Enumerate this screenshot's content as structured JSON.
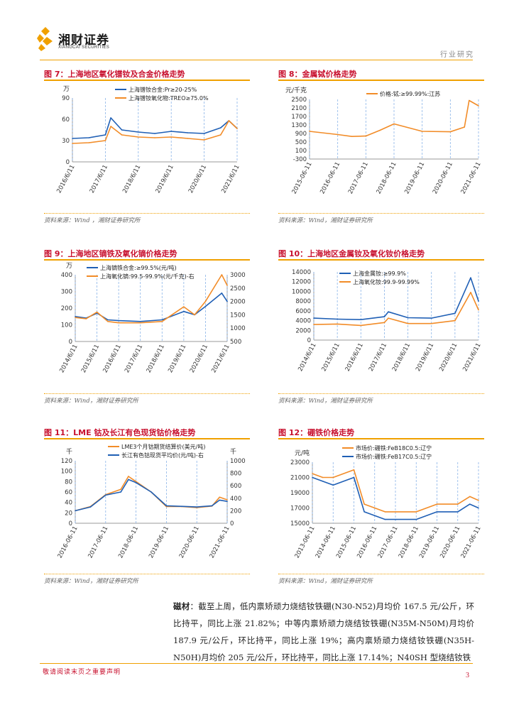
{
  "header": {
    "logo_name": "湘财证券",
    "logo_sub": "XIANGCAI SECURITIES",
    "section_label": "行业研究"
  },
  "colors": {
    "accent": "#f0a000",
    "title_red": "#c8102e",
    "series_blue": "#1f5fb5",
    "series_orange": "#f28c28"
  },
  "figures": [
    {
      "title": "图 7：上海地区氧化镨钕及合金价格走势",
      "source": "资料来源：Wind ，湘财证券研究所"
    },
    {
      "title": "图 8：金属铽价格走势",
      "source": "资料来源：Wind，湘财证券研究所"
    },
    {
      "title": "图 9：上海地区镝铁及氧化镝价格走势",
      "source": "资料来源：Wind，湘财证券研究所"
    },
    {
      "title": "图 10：上海地区金属钕及氧化钕价格走势",
      "source": "资料来源：Wind，湘财证券研究所"
    },
    {
      "title": "图 11：LME 钴及长江有色现货钴价格走势",
      "source": "资料来源：Wind，湘财证券研究所"
    },
    {
      "title": "图 12：硼铁价格走势",
      "source": "资料来源：Wind，湘财证券研究所"
    }
  ],
  "body": {
    "lead": "磁材",
    "text": "：截至上周，低内禀矫顽力烧结钕铁硼(N30-N52)月均价 167.5 元/公斤，环比持平，同比上涨 21.82%；中等内禀矫顽力烧结钕铁硼(N35M-N50M)月均价 187.9 元/公斤，环比持平，同比上涨 19%；高内禀矫顽力烧结钕铁硼(N35H-N50H)月均价 205 元/公斤，环比持平，同比上涨 17.14%；N40SH 型烧结钕铁"
  },
  "footer": {
    "disclaimer": "敬请阅读末页之重要声明",
    "page": "3"
  },
  "chart_data": [
    {
      "type": "line",
      "unit_left": "万",
      "x": [
        "2016/6/11",
        "2016/12/11",
        "2017/6/11",
        "2017/8/11",
        "2017/12/11",
        "2018/6/11",
        "2018/12/11",
        "2019/6/11",
        "2019/12/11",
        "2020/6/11",
        "2020/12/11",
        "2021/3/11",
        "2021/6/11"
      ],
      "xticks": [
        "2016/6/11",
        "2017/6/11",
        "2018/6/11",
        "2019/6/11",
        "2020/6/11",
        "2021/6/11"
      ],
      "yticks": [
        0,
        30,
        60,
        90
      ],
      "ylim": [
        0,
        90
      ],
      "series": [
        {
          "name": "上海镨钕合金:Pr≥20-25%",
          "color": "#1f5fb5",
          "values": [
            33,
            34,
            38,
            62,
            45,
            42,
            40,
            43,
            41,
            40,
            48,
            58,
            47
          ]
        },
        {
          "name": "上海镨钕氧化物:TREO≥75.0%",
          "color": "#f28c28",
          "values": [
            26,
            27,
            30,
            50,
            38,
            35,
            34,
            35,
            33,
            31,
            38,
            58,
            47
          ]
        }
      ]
    },
    {
      "type": "line",
      "unit_left": "元/千克",
      "x": [
        "2015-06-11",
        "2016-06-11",
        "2016-12-11",
        "2017-06-11",
        "2017-12-11",
        "2018-06-11",
        "2019-06-11",
        "2020-06-11",
        "2020-12-11",
        "2021-02-11",
        "2021-06-11"
      ],
      "xticks": [
        "2015-06-11",
        "2016-06-11",
        "2017-06-11",
        "2018-06-11",
        "2019-06-11",
        "2020-06-11",
        "2021-06-11"
      ],
      "yticks": [
        -300,
        100,
        500,
        900,
        1300,
        1700,
        2100,
        2500
      ],
      "ylim": [
        -300,
        2500
      ],
      "series": [
        {
          "name": "价格:铽:≥99.99%:江苏",
          "color": "#f28c28",
          "values": [
            1000,
            850,
            760,
            780,
            1050,
            1350,
            1000,
            980,
            1200,
            2450,
            2200
          ]
        }
      ]
    },
    {
      "type": "line",
      "unit_left": "万",
      "x": [
        "2014/6/11",
        "2014/12/11",
        "2015/6/11",
        "2015/12/11",
        "2016/6/11",
        "2017/6/11",
        "2018/6/11",
        "2019/6/11",
        "2019/12/11",
        "2020/6/11",
        "2021/3/11",
        "2021/6/11"
      ],
      "xticks": [
        "2014/6/11",
        "2015/6/11",
        "2016/6/11",
        "2017/6/11",
        "2018/6/11",
        "2019/6/11",
        "2020/6/11",
        "2021/6/11"
      ],
      "yticks": [
        0,
        100,
        200,
        300,
        400
      ],
      "ylim": [
        0,
        400
      ],
      "y2ticks": [
        500,
        1000,
        1500,
        2000,
        2500,
        3000
      ],
      "y2lim": [
        500,
        3000
      ],
      "series": [
        {
          "name": "上海镝铁合金:≥99.5%(元/吨)",
          "color": "#1f5fb5",
          "values": [
            150,
            140,
            170,
            130,
            125,
            120,
            130,
            180,
            160,
            210,
            290,
            240
          ]
        },
        {
          "name": "上海氧化镝:99.5-99.9%(元/千克)-右",
          "color": "#f28c28",
          "values": [
            1400,
            1350,
            1600,
            1250,
            1200,
            1200,
            1250,
            1800,
            1500,
            2000,
            3000,
            2600
          ]
        }
      ]
    },
    {
      "type": "line",
      "x": [
        "2014/6/11",
        "2015/6/11",
        "2016/6/11",
        "2017/6/11",
        "2017/8/11",
        "2018/6/11",
        "2019/6/11",
        "2020/6/11",
        "2021/2/11",
        "2021/6/11"
      ],
      "xticks": [
        "2014/6/11",
        "2015/6/11",
        "2016/6/11",
        "2017/6/11",
        "2018/6/11",
        "2019/6/11",
        "2020/6/11",
        "2021/6/11"
      ],
      "yticks": [
        0,
        2000,
        4000,
        6000,
        8000,
        10000,
        12000,
        14000
      ],
      "ylim": [
        0,
        14000
      ],
      "series": [
        {
          "name": "上海金属钕:≥99.9%",
          "color": "#1f5fb5",
          "values": [
            4500,
            4300,
            4200,
            4800,
            5800,
            4600,
            4500,
            5500,
            12800,
            8000
          ]
        },
        {
          "name": "上海氧化钕:99.9-99.99%",
          "color": "#f28c28",
          "values": [
            3200,
            3300,
            3000,
            3600,
            4500,
            3400,
            3400,
            4000,
            9800,
            6200
          ]
        }
      ]
    },
    {
      "type": "line",
      "unit_left": "千",
      "unit_right": "千",
      "x": [
        "2016-06-11",
        "2016-12-11",
        "2017-06-11",
        "2017-12-11",
        "2018-03-11",
        "2018-06-11",
        "2018-12-11",
        "2019-06-11",
        "2019-12-11",
        "2020-06-11",
        "2020-12-11",
        "2021-03-11",
        "2021-06-11"
      ],
      "xticks": [
        "2016-06-11",
        "2017-06-11",
        "2018-06-11",
        "2019-06-11",
        "2020-06-11",
        "2021-06-11"
      ],
      "yticks": [
        0,
        20,
        40,
        60,
        80,
        100,
        120
      ],
      "ylim": [
        0,
        120
      ],
      "y2ticks": [
        0,
        200,
        400,
        600,
        800,
        1000
      ],
      "y2lim": [
        0,
        1000
      ],
      "series": [
        {
          "name": "LME3个月钴期货结算价(美元/吨)",
          "color": "#f28c28",
          "values": [
            24,
            32,
            55,
            65,
            90,
            80,
            60,
            32,
            32,
            30,
            33,
            50,
            45
          ]
        },
        {
          "name": "长江有色钴现货平均价(元/吨)-右",
          "color": "#1f5fb5",
          "values": [
            200,
            260,
            450,
            500,
            700,
            650,
            500,
            280,
            270,
            260,
            280,
            370,
            350
          ]
        }
      ]
    },
    {
      "type": "line",
      "unit_left": "元/吨",
      "x": [
        "2013-06-11",
        "2013-12-11",
        "2014-06-11",
        "2015-06-11",
        "2015-12-11",
        "2016-06-11",
        "2016-12-11",
        "2017-06-11",
        "2018-06-11",
        "2019-06-11",
        "2020-06-11",
        "2021-01-11",
        "2021-06-11"
      ],
      "xticks": [
        "2013-06-11",
        "2014-06-11",
        "2015-06-11",
        "2016-06-11",
        "2017-06-11",
        "2018-06-11",
        "2019-06-11",
        "2020-06-11",
        "2021-06-11"
      ],
      "yticks": [
        15000,
        17000,
        19000,
        21000,
        23000
      ],
      "ylim": [
        15000,
        23000
      ],
      "series": [
        {
          "name": "市场价:硼铁:FeB18C0.5:辽宁",
          "color": "#f28c28",
          "values": [
            21500,
            21000,
            21000,
            22000,
            17500,
            17000,
            16500,
            16500,
            16500,
            17500,
            17500,
            18500,
            18000
          ]
        },
        {
          "name": "市场价:硼铁:FeB17C0.5:辽宁",
          "color": "#1f5fb5",
          "values": [
            21000,
            20500,
            20000,
            21000,
            16500,
            16000,
            15500,
            15500,
            15500,
            16500,
            16500,
            17500,
            17000
          ]
        }
      ]
    }
  ]
}
